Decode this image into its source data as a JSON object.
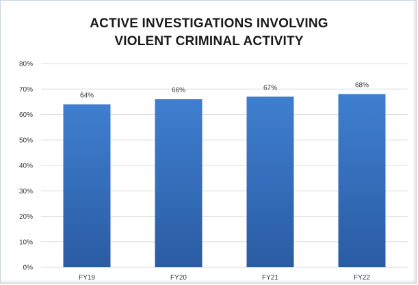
{
  "chart_data": {
    "type": "bar",
    "title_lines": [
      "ACTIVE INVESTIGATIONS INVOLVING",
      "VIOLENT CRIMINAL ACTIVITY"
    ],
    "categories": [
      "FY19",
      "FY20",
      "FY21",
      "FY22"
    ],
    "values": [
      64,
      66,
      67,
      68
    ],
    "data_labels": [
      "64%",
      "66%",
      "67%",
      "68%"
    ],
    "ylim": [
      0,
      80
    ],
    "yticks": [
      0,
      10,
      20,
      30,
      40,
      50,
      60,
      70,
      80
    ],
    "ytick_labels": [
      "0%",
      "10%",
      "20%",
      "30%",
      "40%",
      "50%",
      "60%",
      "70%",
      "80%"
    ],
    "grid": true,
    "bar_color_top": "#3f7fd0",
    "bar_color_bottom": "#2a5ca3"
  }
}
